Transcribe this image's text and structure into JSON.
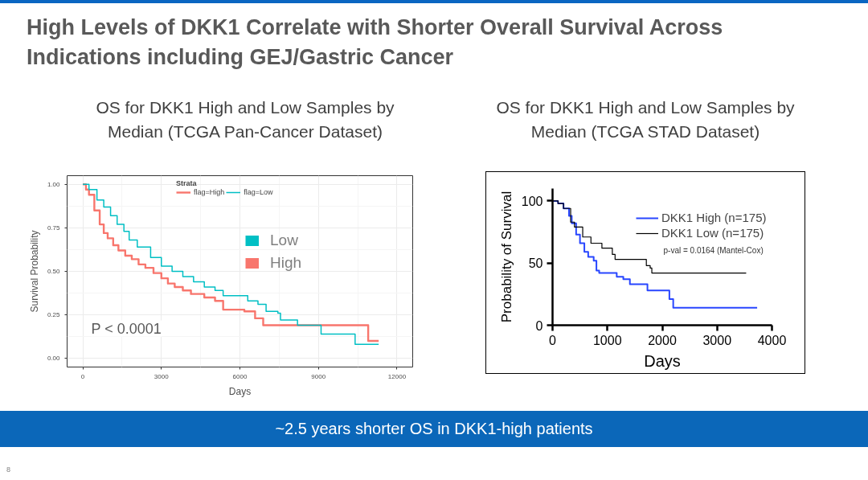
{
  "chart_data": [
    {
      "type": "other",
      "title": "High Levels of DKK1 Correlate with Shorter Overall Survival Across Indications including GEJ/Gastric Cancer",
      "annotations": [
        "~2.5 years shorter OS in DKK1-high patients",
        "8"
      ]
    },
    {
      "type": "step",
      "title": "OS for DKK1 High and Low Samples by Median (TCGA Pan-Cancer Dataset)",
      "xlabel": "Days",
      "ylabel": "Survival Probability",
      "legend_title": "Strata",
      "legend": "top",
      "grid": true,
      "xlim": [
        -600,
        12600
      ],
      "ylim": [
        -0.05,
        1.05
      ],
      "xticks": [
        0,
        3000,
        6000,
        9000,
        12000
      ],
      "yticks": [
        {
          "value": 0,
          "label": "0.00"
        },
        {
          "value": 0.25,
          "label": "0.25"
        },
        {
          "value": 0.5,
          "label": "0.50"
        },
        {
          "value": 0.75,
          "label": "0.75"
        },
        {
          "value": 1,
          "label": "1.00"
        }
      ],
      "series": [
        {
          "name": "flag=High",
          "color": "#f8766d",
          "x": [
            0,
            120,
            235,
            440,
            645,
            800,
            950,
            1160,
            1360,
            1620,
            1870,
            2130,
            2390,
            2700,
            3000,
            3250,
            3510,
            3820,
            4130,
            4640,
            5050,
            5360,
            6170,
            6580,
            6890,
            10900,
            11300
          ],
          "values": [
            1.0,
            0.97,
            0.94,
            0.85,
            0.77,
            0.72,
            0.69,
            0.65,
            0.62,
            0.59,
            0.57,
            0.54,
            0.52,
            0.49,
            0.46,
            0.43,
            0.41,
            0.39,
            0.37,
            0.35,
            0.33,
            0.28,
            0.27,
            0.23,
            0.19,
            0.1,
            0.1
          ]
        },
        {
          "name": "flag=Low",
          "color": "#00bfc4",
          "x": [
            0,
            235,
            540,
            800,
            1060,
            1310,
            1570,
            1770,
            2080,
            2590,
            3000,
            3410,
            3820,
            4230,
            4640,
            5050,
            5360,
            6300,
            6690,
            7000,
            7450,
            7550,
            8200,
            9100,
            10400,
            11300
          ],
          "values": [
            1.0,
            0.97,
            0.91,
            0.87,
            0.82,
            0.77,
            0.73,
            0.68,
            0.64,
            0.58,
            0.53,
            0.5,
            0.47,
            0.44,
            0.41,
            0.39,
            0.36,
            0.33,
            0.31,
            0.27,
            0.26,
            0.22,
            0.19,
            0.14,
            0.08,
            0.08
          ]
        }
      ],
      "annotations": [
        "Low",
        "High",
        "P < 0.0001"
      ]
    },
    {
      "type": "step",
      "title": "OS for DKK1 High and Low Samples by Median (TCGA STAD Dataset)",
      "xlabel": "Days",
      "ylabel": "Probability of Survival",
      "legend": "top right",
      "xlim": [
        0,
        4000
      ],
      "ylim": [
        0,
        110
      ],
      "xticks": [
        0,
        1000,
        2000,
        3000,
        4000
      ],
      "yticks": [
        0,
        50,
        100
      ],
      "series": [
        {
          "name": "DKK1 High (n=175)",
          "color": "#2846ff",
          "x": [
            0,
            100,
            200,
            300,
            350,
            430,
            500,
            580,
            650,
            750,
            800,
            850,
            1170,
            1290,
            1410,
            1730,
            2130,
            2200,
            3730
          ],
          "values": [
            100,
            98,
            94,
            88,
            82,
            73,
            66,
            59,
            55,
            52,
            44,
            42,
            39,
            37,
            33,
            28,
            21,
            14,
            14
          ]
        },
        {
          "name": "DKK1 Low (n=175)",
          "color": "#000000",
          "x": [
            0,
            100,
            200,
            330,
            400,
            550,
            700,
            900,
            1090,
            1140,
            1710,
            1780,
            1810,
            3530
          ],
          "values": [
            100,
            98,
            94,
            83,
            79,
            71,
            66,
            62,
            57,
            53,
            48,
            46,
            42,
            42
          ]
        }
      ],
      "annotations": [
        "p-val = 0.0164 (Mantel-Cox)"
      ]
    }
  ]
}
